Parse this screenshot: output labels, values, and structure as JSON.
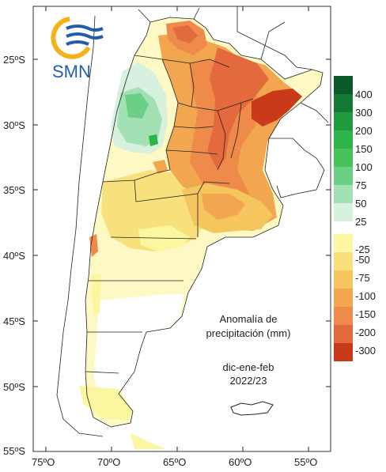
{
  "logo": {
    "text": "SMN"
  },
  "annotation": {
    "title_line1": "Anomalía de",
    "title_line2": "precipitación (mm)",
    "period_line1": "dic-ene-feb",
    "period_line2": "2022/23"
  },
  "axes": {
    "lat_labels": [
      "25ºS",
      "30ºS",
      "35ºS",
      "40ºS",
      "45ºS",
      "50ºS",
      "55ºS"
    ],
    "lon_labels": [
      "75ºO",
      "70ºO",
      "65ºO",
      "60ºO",
      "55ºO"
    ]
  },
  "legend": {
    "positive": [
      {
        "label": "400",
        "color": "#0a5a2a"
      },
      {
        "label": "300",
        "color": "#137a36"
      },
      {
        "label": "200",
        "color": "#1f9a3c"
      },
      {
        "label": "150",
        "color": "#2cb449"
      },
      {
        "label": "100",
        "color": "#48c35a"
      },
      {
        "label": "75",
        "color": "#6ccf86"
      },
      {
        "label": "50",
        "color": "#a3e0b4"
      },
      {
        "label": "25",
        "color": "#d6f1de"
      }
    ],
    "negative": [
      {
        "label": "-25",
        "color": "#fbf6a0"
      },
      {
        "label": "-50",
        "color": "#f8e07c"
      },
      {
        "label": "-75",
        "color": "#f6c65e"
      },
      {
        "label": "-100",
        "color": "#f2a64f"
      },
      {
        "label": "-150",
        "color": "#ee8a4a"
      },
      {
        "label": "-200",
        "color": "#e36a3c"
      },
      {
        "label": "-300",
        "color": "#c93a1a"
      }
    ]
  }
}
